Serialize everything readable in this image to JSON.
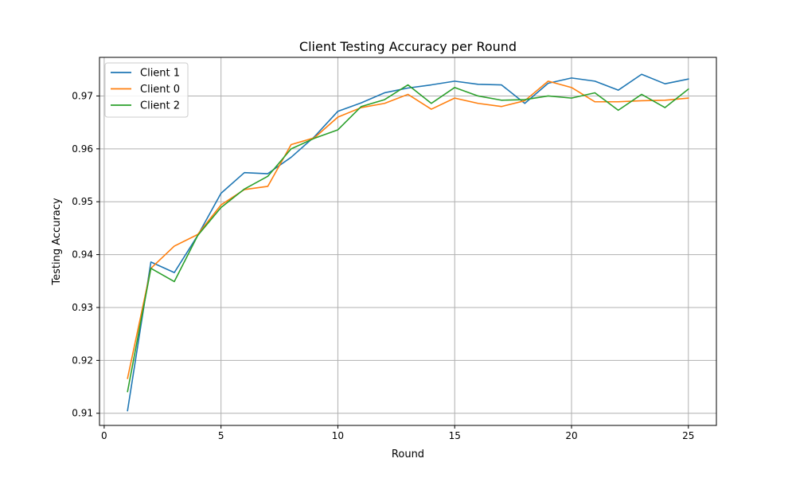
{
  "chart_data": {
    "type": "line",
    "title": "Client Testing Accuracy per Round",
    "xlabel": "Round",
    "ylabel": "Testing Accuracy",
    "x": [
      1,
      2,
      3,
      4,
      5,
      6,
      7,
      8,
      9,
      10,
      11,
      12,
      13,
      14,
      15,
      16,
      17,
      18,
      19,
      20,
      21,
      22,
      23,
      24,
      25
    ],
    "xlim": [
      -0.2,
      26.2
    ],
    "ylim": [
      0.9077,
      0.9773
    ],
    "xticks": [
      0,
      5,
      10,
      15,
      20,
      25
    ],
    "xtick_labels": [
      "0",
      "5",
      "10",
      "15",
      "20",
      "25"
    ],
    "yticks": [
      0.91,
      0.92,
      0.93,
      0.94,
      0.95,
      0.96,
      0.97
    ],
    "ytick_labels": [
      "0.91",
      "0.92",
      "0.93",
      "0.94",
      "0.95",
      "0.96",
      "0.97"
    ],
    "grid": true,
    "legend_position": "top-left",
    "series": [
      {
        "name": "Client 1",
        "color": "#1f77b4",
        "values": [
          0.9105,
          0.9386,
          0.9366,
          0.9436,
          0.9516,
          0.9555,
          0.9553,
          0.9584,
          0.9623,
          0.9671,
          0.9687,
          0.9706,
          0.9715,
          0.9721,
          0.9728,
          0.9722,
          0.9721,
          0.9686,
          0.9724,
          0.9734,
          0.9728,
          0.9711,
          0.9741,
          0.9723,
          0.9732
        ]
      },
      {
        "name": "Client 0",
        "color": "#ff7f0e",
        "values": [
          0.9166,
          0.9374,
          0.9416,
          0.9438,
          0.9494,
          0.9523,
          0.9529,
          0.9608,
          0.9621,
          0.966,
          0.9678,
          0.9686,
          0.9703,
          0.9675,
          0.9696,
          0.9686,
          0.968,
          0.9691,
          0.9728,
          0.9716,
          0.9689,
          0.9689,
          0.9691,
          0.9692,
          0.9696
        ]
      },
      {
        "name": "Client 2",
        "color": "#2ca02c",
        "values": [
          0.9141,
          0.9374,
          0.9349,
          0.9436,
          0.9489,
          0.9524,
          0.9548,
          0.96,
          0.962,
          0.9636,
          0.968,
          0.9693,
          0.9721,
          0.9686,
          0.9716,
          0.97,
          0.9692,
          0.9693,
          0.97,
          0.9696,
          0.9706,
          0.9673,
          0.9703,
          0.9678,
          0.9713
        ]
      }
    ]
  }
}
